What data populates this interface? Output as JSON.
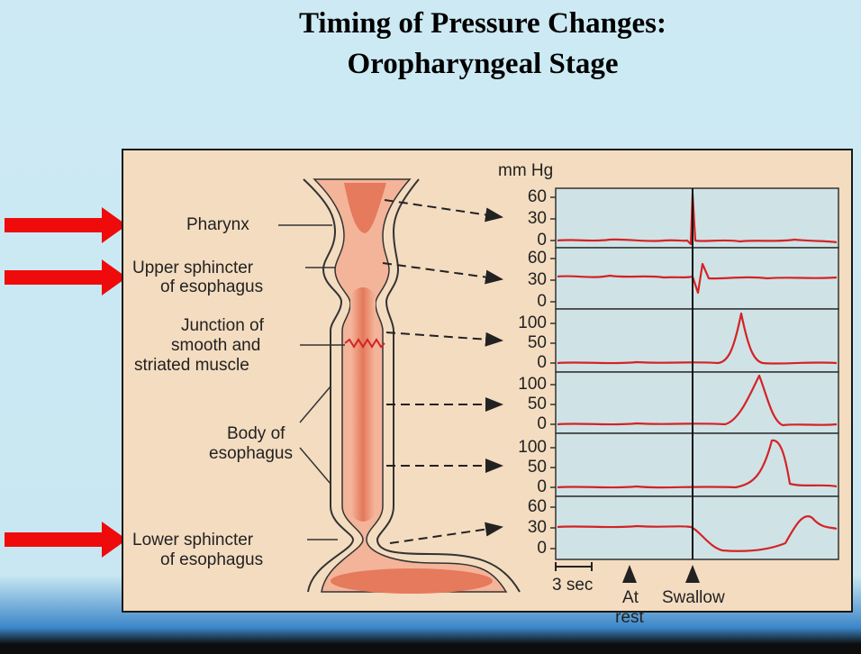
{
  "slide": {
    "title_line1": "Timing of Pressure Changes:",
    "title_line2": "Oropharyngeal Stage",
    "arrow_color": "#ef0b0b"
  },
  "diagram": {
    "labels": {
      "pharynx": "Pharynx",
      "upper_sphincter_1": "Upper sphincter",
      "upper_sphincter_2": "of esophagus",
      "junction_1": "Junction of",
      "junction_2": "smooth and",
      "junction_3": "striated muscle",
      "body_1": "Body of",
      "body_2": "esophagus",
      "lower_sphincter_1": "Lower sphincter",
      "lower_sphincter_2": "of esophagus"
    },
    "colors": {
      "background": "#f4dcc0",
      "panel": "#cfe3e6",
      "trace": "#d42326",
      "tissue": "#e98a6e"
    }
  },
  "chart": {
    "unit": "mm Hg",
    "panels": [
      {
        "ticks": [
          "60",
          "30",
          "0"
        ]
      },
      {
        "ticks": [
          "60",
          "30",
          "0"
        ]
      },
      {
        "ticks": [
          "100",
          "50",
          "0"
        ]
      },
      {
        "ticks": [
          "100",
          "50",
          "0"
        ]
      },
      {
        "ticks": [
          "100",
          "50",
          "0"
        ]
      },
      {
        "ticks": [
          "60",
          "30",
          "0"
        ]
      }
    ],
    "scale_label": "3 sec",
    "at_rest_1": "At",
    "at_rest_2": "rest",
    "swallow": "Swallow"
  }
}
